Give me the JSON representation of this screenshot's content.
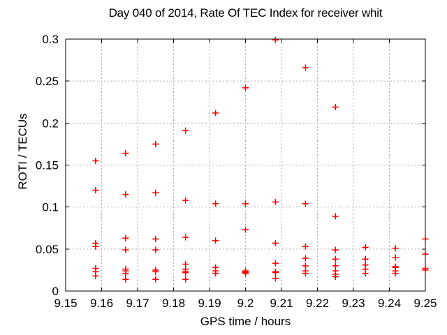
{
  "chart_data": {
    "type": "scatter",
    "title": "Day 040 of 2014, Rate Of TEC Index for receiver whit",
    "xlabel": "GPS time / hours",
    "ylabel": "ROTI / TECUs",
    "xlim": [
      9.15,
      9.25
    ],
    "ylim": [
      0,
      0.3
    ],
    "grid": true,
    "legend_position": "none",
    "xticks": {
      "values": [
        9.15,
        9.16,
        9.17,
        9.18,
        9.19,
        9.2,
        9.21,
        9.22,
        9.23,
        9.24,
        9.25
      ],
      "labels": [
        "9.15",
        "9.16",
        "9.17",
        "9.18",
        "9.19",
        "9.2",
        "9.21",
        "9.22",
        "9.23",
        "9.24",
        "9.25"
      ]
    },
    "yticks": {
      "values": [
        0,
        0.05,
        0.1,
        0.15,
        0.2,
        0.25,
        0.3
      ],
      "labels": [
        "0",
        "0.05",
        "0.1",
        "0.15",
        "0.2",
        "0.25",
        "0.3"
      ]
    },
    "marker": {
      "shape": "plus",
      "size": 9,
      "color": "#ff0000"
    },
    "colors": {
      "background": "#ffffff",
      "border": "#000000",
      "grid": "#aaaaaa",
      "text": "#000000",
      "marker": "#ff0000"
    },
    "series": [
      {
        "name": "ROTI",
        "points": [
          [
            9.15833,
            0.155
          ],
          [
            9.15833,
            0.12
          ],
          [
            9.15833,
            0.057
          ],
          [
            9.15833,
            0.053
          ],
          [
            9.15833,
            0.027
          ],
          [
            9.15833,
            0.023
          ],
          [
            9.15833,
            0.018
          ],
          [
            9.16667,
            0.164
          ],
          [
            9.16667,
            0.115
          ],
          [
            9.16667,
            0.063
          ],
          [
            9.16667,
            0.049
          ],
          [
            9.16667,
            0.026
          ],
          [
            9.16667,
            0.024
          ],
          [
            9.16667,
            0.021
          ],
          [
            9.16667,
            0.014
          ],
          [
            9.175,
            0.175
          ],
          [
            9.175,
            0.117
          ],
          [
            9.175,
            0.062
          ],
          [
            9.175,
            0.049
          ],
          [
            9.175,
            0.025
          ],
          [
            9.175,
            0.023
          ],
          [
            9.175,
            0.014
          ],
          [
            9.18333,
            0.191
          ],
          [
            9.18333,
            0.108
          ],
          [
            9.18333,
            0.064
          ],
          [
            9.18333,
            0.032
          ],
          [
            9.18333,
            0.026
          ],
          [
            9.18333,
            0.023
          ],
          [
            9.18333,
            0.022
          ],
          [
            9.18333,
            0.014
          ],
          [
            9.19167,
            0.212
          ],
          [
            9.19167,
            0.104
          ],
          [
            9.19167,
            0.06
          ],
          [
            9.19167,
            0.028
          ],
          [
            9.19167,
            0.024
          ],
          [
            9.19167,
            0.021
          ],
          [
            9.2,
            0.242
          ],
          [
            9.2,
            0.104
          ],
          [
            9.2,
            0.073
          ],
          [
            9.2,
            0.024
          ],
          [
            9.2,
            0.023
          ],
          [
            9.2,
            0.022
          ],
          [
            9.2,
            0.021
          ],
          [
            9.20833,
            0.299
          ],
          [
            9.20833,
            0.106
          ],
          [
            9.20833,
            0.057
          ],
          [
            9.20833,
            0.033
          ],
          [
            9.20833,
            0.023
          ],
          [
            9.20833,
            0.022
          ],
          [
            9.20833,
            0.015
          ],
          [
            9.21667,
            0.266
          ],
          [
            9.21667,
            0.104
          ],
          [
            9.21667,
            0.053
          ],
          [
            9.21667,
            0.039
          ],
          [
            9.21667,
            0.03
          ],
          [
            9.21667,
            0.024
          ],
          [
            9.21667,
            0.021
          ],
          [
            9.225,
            0.219
          ],
          [
            9.225,
            0.089
          ],
          [
            9.225,
            0.049
          ],
          [
            9.225,
            0.038
          ],
          [
            9.225,
            0.03
          ],
          [
            9.225,
            0.024
          ],
          [
            9.225,
            0.02
          ],
          [
            9.225,
            0.017
          ],
          [
            9.23333,
            0.052
          ],
          [
            9.23333,
            0.038
          ],
          [
            9.23333,
            0.031
          ],
          [
            9.23333,
            0.026
          ],
          [
            9.23333,
            0.021
          ],
          [
            9.24167,
            0.051
          ],
          [
            9.24167,
            0.04
          ],
          [
            9.24167,
            0.029
          ],
          [
            9.24167,
            0.028
          ],
          [
            9.24167,
            0.024
          ],
          [
            9.24167,
            0.021
          ],
          [
            9.25,
            0.062
          ],
          [
            9.25,
            0.044
          ],
          [
            9.25,
            0.027
          ],
          [
            9.25,
            0.025
          ]
        ]
      }
    ]
  }
}
